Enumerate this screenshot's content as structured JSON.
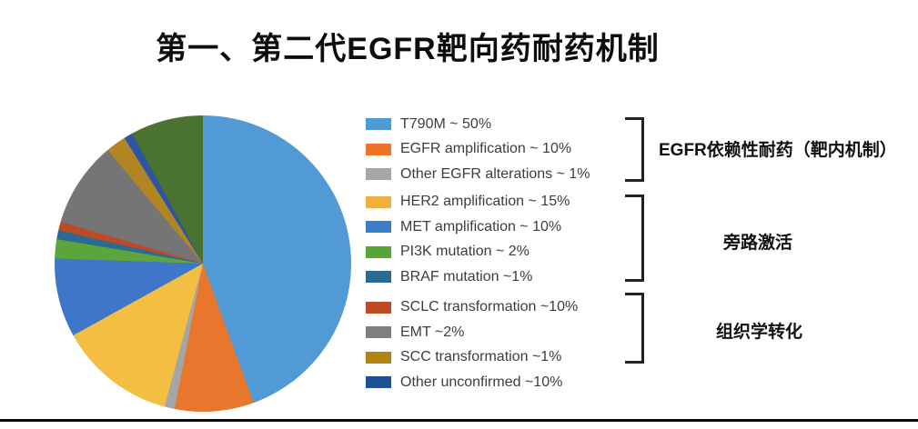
{
  "title": "第一、第二代EGFR靶向药耐药机制",
  "colors": {
    "background": "#ffffff",
    "title_text": "#0d0d0d",
    "legend_text": "#3d3d3d",
    "bracket_line": "#222222",
    "bottom_rule": "#0a0a0a"
  },
  "chart_data": {
    "type": "pie",
    "title": "第一、第二代EGFR靶向药耐药机制",
    "legend_position": "right",
    "slices": [
      {
        "label": "T790M",
        "pct": 50,
        "legend_text": "T790M ~ 50%",
        "color": "#4D9BD5",
        "group": "EGFR依赖性耐药（靶内机制）"
      },
      {
        "label": "EGFR amplification",
        "pct": 10,
        "legend_text": "EGFR amplification ~ 10%",
        "color": "#EF7226",
        "group": "EGFR依赖性耐药（靶内机制）"
      },
      {
        "label": "Other EGFR alterations",
        "pct": 1,
        "legend_text": "Other EGFR alterations ~ 1%",
        "color": "#A6A6A6",
        "group": "EGFR依赖性耐药（靶内机制）"
      },
      {
        "label": "HER2 amplification",
        "pct": 15,
        "legend_text": "HER2 amplification ~ 15%",
        "color": "#EFB042",
        "group": "旁路激活"
      },
      {
        "label": "MET amplification",
        "pct": 10,
        "legend_text": "MET amplification ~ 10%",
        "color": "#3C7CC8",
        "group": "旁路激活"
      },
      {
        "label": "PI3K mutation",
        "pct": 2,
        "legend_text": "PI3K mutation ~ 2%",
        "color": "#57A437",
        "group": "旁路激活"
      },
      {
        "label": "BRAF mutation",
        "pct": 1,
        "legend_text": "BRAF mutation ~1%",
        "color": "#2A6A8E",
        "group": "旁路激活"
      },
      {
        "label": "SCLC transformation",
        "pct": 10,
        "legend_text": "SCLC transformation ~10%",
        "color": "#BE4A26",
        "group": "组织学转化"
      },
      {
        "label": "EMT",
        "pct": 2,
        "legend_text": "EMT ~2%",
        "color": "#7F7F7F",
        "group": "组织学转化"
      },
      {
        "label": "SCC transformation",
        "pct": 1,
        "legend_text": "SCC transformation ~1%",
        "color": "#AF8514",
        "group": "组织学转化"
      },
      {
        "label": "Other unconfirmed",
        "pct": 10,
        "legend_text": "Other unconfirmed ~10%",
        "color": "#1F5096",
        "group": null
      }
    ],
    "groups": [
      {
        "label": "EGFR依赖性耐药（靶内机制）",
        "slice_indexes": [
          0,
          1,
          2
        ]
      },
      {
        "label": "旁路激活",
        "slice_indexes": [
          3,
          4,
          5,
          6
        ]
      },
      {
        "label": "组织学转化",
        "slice_indexes": [
          7,
          8,
          9
        ]
      },
      {
        "label": null,
        "slice_indexes": [
          10
        ]
      }
    ],
    "drawn_slices": [
      {
        "name": "T790M",
        "color": "#519AD6",
        "start_deg": 0,
        "end_deg": 160
      },
      {
        "name": "EGFR amplification",
        "color": "#E9762D",
        "start_deg": 160,
        "end_deg": 191
      },
      {
        "name": "Other EGFR alterations",
        "color": "#A5A5A5",
        "start_deg": 191,
        "end_deg": 195
      },
      {
        "name": "HER2 amplification",
        "color": "#F3BE41",
        "start_deg": 195,
        "end_deg": 241
      },
      {
        "name": "MET amplification",
        "color": "#3E76C9",
        "start_deg": 241,
        "end_deg": 272
      },
      {
        "name": "PI3K mutation",
        "color": "#5CA53C",
        "start_deg": 272,
        "end_deg": 279.5
      },
      {
        "name": "BRAF mutation",
        "color": "#2B6B8F",
        "start_deg": 279.5,
        "end_deg": 283
      },
      {
        "name": "SCLC transformation",
        "color": "#BC4B27",
        "start_deg": 283,
        "end_deg": 286.5
      },
      {
        "name": "EMT",
        "color": "#757575",
        "start_deg": 286.5,
        "end_deg": 320
      },
      {
        "name": "SCC transformation",
        "color": "#B08522",
        "start_deg": 320,
        "end_deg": 328
      },
      {
        "name": "Other unconfirmed",
        "color": "#2E55A0",
        "start_deg": 328,
        "end_deg": 331.5
      },
      {
        "name": "unlabeled-dark-green",
        "color": "#4A7231",
        "start_deg": 331.5,
        "end_deg": 360
      }
    ]
  }
}
